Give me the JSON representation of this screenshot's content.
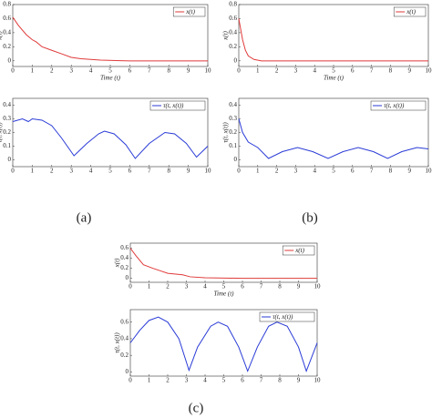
{
  "chart_data": [
    {
      "type": "line",
      "x": [
        0,
        0.3,
        0.7,
        1,
        1.2,
        1.5,
        2,
        2.5,
        3,
        3.5,
        4.5,
        6,
        8,
        10
      ],
      "series": [
        {
          "name": "x(t)",
          "color": "#e03a3a",
          "values": [
            0.62,
            0.5,
            0.37,
            0.3,
            0.27,
            0.2,
            0.15,
            0.1,
            0.05,
            0.03,
            0.01,
            0,
            0,
            0
          ]
        }
      ],
      "xlim": [
        0,
        10
      ],
      "xticks": [
        0,
        1,
        2,
        3,
        4,
        5,
        6,
        7,
        8,
        9,
        10
      ],
      "ylim": [
        -0.08,
        0.8
      ],
      "yticks": [
        0,
        0.2,
        0.4,
        0.6,
        0.8
      ],
      "xlabel": "Time (t)",
      "ylabel": "x(t)",
      "legend": "upper right"
    },
    {
      "type": "line",
      "x": [
        0,
        0.5,
        0.8,
        1,
        1.5,
        2,
        2.5,
        3.14,
        3.8,
        4.4,
        4.7,
        5.2,
        5.8,
        6.28,
        7,
        7.8,
        8.3,
        8.9,
        9.42,
        10
      ],
      "series": [
        {
          "name": "τ(t, x(t))",
          "color": "#2a3bd6",
          "values": [
            0.28,
            0.3,
            0.28,
            0.3,
            0.29,
            0.25,
            0.16,
            0.03,
            0.12,
            0.19,
            0.21,
            0.19,
            0.11,
            0.01,
            0.12,
            0.2,
            0.19,
            0.12,
            0.02,
            0.1
          ]
        }
      ],
      "xlim": [
        0,
        10
      ],
      "xticks": [
        0,
        1,
        2,
        3,
        4,
        5,
        6,
        7,
        8,
        9,
        10
      ],
      "ylim": [
        -0.05,
        0.45
      ],
      "yticks": [
        0,
        0.1,
        0.2,
        0.3,
        0.4
      ],
      "ylabel": "τ(t, x(t))",
      "legend": "upper right",
      "panel_label": "(a)"
    },
    {
      "type": "line",
      "x": [
        0,
        0.2,
        0.35,
        0.5,
        0.8,
        1.2,
        3,
        6,
        10
      ],
      "series": [
        {
          "name": "x(t)",
          "color": "#e03a3a",
          "values": [
            0.6,
            0.3,
            0.15,
            0.07,
            0.02,
            0,
            0,
            0,
            0
          ]
        }
      ],
      "xlim": [
        0,
        10
      ],
      "xticks": [
        0,
        1,
        2,
        3,
        4,
        5,
        6,
        7,
        8,
        9,
        10
      ],
      "ylim": [
        -0.08,
        0.8
      ],
      "yticks": [
        0,
        0.2,
        0.4,
        0.6,
        0.8
      ],
      "xlabel": "Time (t)",
      "ylabel": "x(t)",
      "legend": "upper right"
    },
    {
      "type": "line",
      "x": [
        0,
        0.2,
        0.5,
        1,
        1.57,
        2.3,
        3.1,
        3.9,
        4.71,
        5.5,
        6.3,
        7.1,
        7.85,
        8.6,
        9.4,
        10
      ],
      "series": [
        {
          "name": "τ(t, x(t))",
          "color": "#2a3bd6",
          "values": [
            0.3,
            0.2,
            0.13,
            0.09,
            0.01,
            0.06,
            0.09,
            0.06,
            0.01,
            0.06,
            0.09,
            0.06,
            0.01,
            0.06,
            0.09,
            0.08
          ]
        }
      ],
      "xlim": [
        0,
        10
      ],
      "xticks": [
        0,
        1,
        2,
        3,
        4,
        5,
        6,
        7,
        8,
        9,
        10
      ],
      "ylim": [
        -0.05,
        0.45
      ],
      "yticks": [
        0,
        0.1,
        0.2,
        0.3,
        0.4
      ],
      "ylabel": "τ(t, x(t))",
      "legend": "upper right",
      "panel_label": "(b)"
    },
    {
      "type": "line",
      "x": [
        0,
        0.3,
        0.7,
        1.2,
        1.6,
        2,
        2.8,
        3.2,
        4,
        6,
        8,
        10
      ],
      "series": [
        {
          "name": "x(t)",
          "color": "#e03a3a",
          "values": [
            0.6,
            0.45,
            0.27,
            0.2,
            0.15,
            0.1,
            0.07,
            0.03,
            0.01,
            0,
            0,
            0
          ]
        }
      ],
      "xlim": [
        0,
        10
      ],
      "xticks": [
        0,
        1,
        2,
        3,
        4,
        5,
        6,
        7,
        8,
        9,
        10
      ],
      "ylim": [
        -0.08,
        0.7
      ],
      "yticks": [
        0,
        0.2,
        0.4,
        0.6
      ],
      "xlabel": "Time (t)",
      "ylabel": "x(t)",
      "legend": "upper right"
    },
    {
      "type": "line",
      "x": [
        0,
        0.5,
        1,
        1.5,
        2,
        2.6,
        3.14,
        3.6,
        4.3,
        4.7,
        5.2,
        5.8,
        6.28,
        6.8,
        7.4,
        7.85,
        8.4,
        9,
        9.42,
        10
      ],
      "series": [
        {
          "name": "τ(t, x(t))",
          "color": "#2a3bd6",
          "values": [
            0.35,
            0.5,
            0.62,
            0.66,
            0.6,
            0.4,
            0.02,
            0.3,
            0.55,
            0.6,
            0.55,
            0.3,
            0.01,
            0.3,
            0.55,
            0.6,
            0.55,
            0.3,
            0.01,
            0.35
          ]
        }
      ],
      "xlim": [
        0,
        10
      ],
      "xticks": [
        0,
        1,
        2,
        3,
        4,
        5,
        6,
        7,
        8,
        9,
        10
      ],
      "ylim": [
        -0.05,
        0.75
      ],
      "yticks": [
        0,
        0.2,
        0.4,
        0.6
      ],
      "ylabel": "τ(t, x(t))",
      "legend": "upper right",
      "panel_label": "(c)"
    }
  ]
}
